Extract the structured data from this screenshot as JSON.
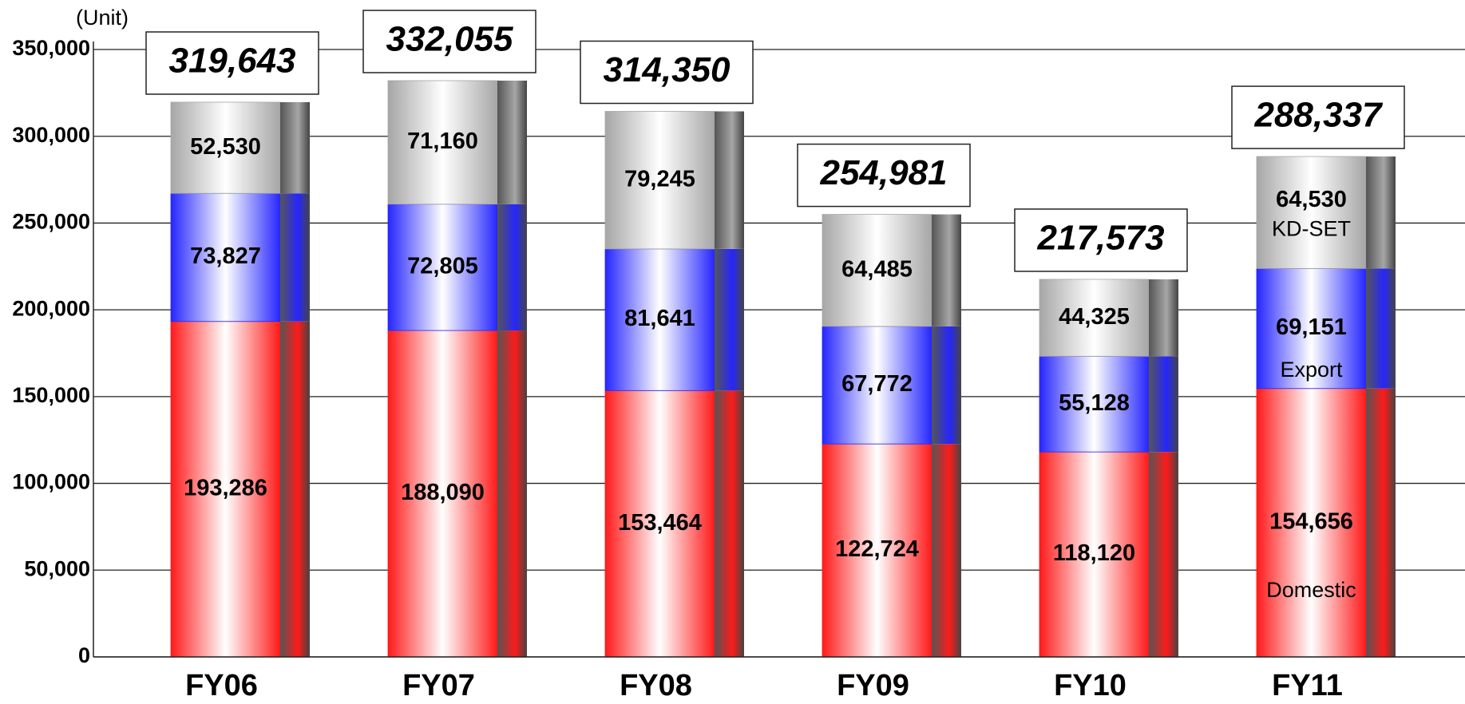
{
  "chart_data": {
    "type": "stacked_bar",
    "unit_label": "(Unit)",
    "categories": [
      "FY06",
      "FY07",
      "FY08",
      "FY09",
      "FY10",
      "FY11"
    ],
    "series": [
      {
        "name": "Domestic",
        "color": "#ff1a1a",
        "values": [
          193286,
          188090,
          153464,
          122724,
          118120,
          154656
        ],
        "value_labels": [
          "193,286",
          "188,090",
          "153,464",
          "122,724",
          "118,120",
          "154,656"
        ]
      },
      {
        "name": "Export",
        "color": "#2626ff",
        "values": [
          73827,
          72805,
          81641,
          67772,
          55128,
          69151
        ],
        "value_labels": [
          "73,827",
          "72,805",
          "81,641",
          "67,772",
          "55,128",
          "69,151"
        ]
      },
      {
        "name": "KD-SET",
        "color": "#a6a6a6",
        "values": [
          52530,
          71160,
          79245,
          64485,
          44325,
          64530
        ],
        "value_labels": [
          "52,530",
          "71,160",
          "79,245",
          "64,485",
          "44,325",
          "64,530"
        ]
      }
    ],
    "totals": [
      319643,
      332055,
      314350,
      254981,
      217573,
      288337
    ],
    "total_labels": [
      "319,643",
      "332,055",
      "314,350",
      "254,981",
      "217,573",
      "288,337"
    ],
    "ylim": [
      0,
      350000
    ],
    "yticks": [
      0,
      {
        "value": 50000,
        "label": "50,000"
      },
      {
        "value": 100000,
        "label": "100,000"
      },
      {
        "value": 150000,
        "label": "150,000"
      },
      {
        "value": 200000,
        "label": "200,000"
      },
      {
        "value": 250000,
        "label": "250,000"
      },
      {
        "value": 300000,
        "label": "300,000"
      },
      {
        "value": 350000,
        "label": "350,000"
      }
    ],
    "grid": true
  }
}
